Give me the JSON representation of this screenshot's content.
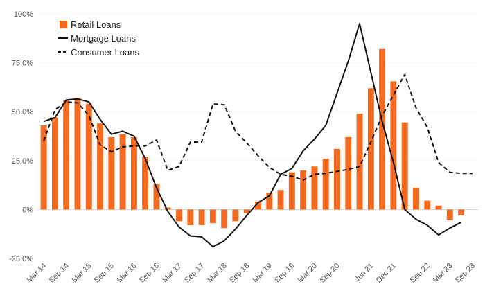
{
  "chart_data": {
    "type": "bar",
    "title": "",
    "xlabel": "",
    "ylabel": "",
    "ylim": [
      -25,
      100
    ],
    "yticks": [
      -25,
      0,
      25,
      50,
      75,
      100
    ],
    "ytick_labels": [
      "-25.0%",
      "0%",
      "25.0%",
      "50.0%",
      "75.0%",
      "100%"
    ],
    "grid": true,
    "legend_position": "top-left",
    "categories": [
      "Mar 14",
      "Jun 14",
      "Sep 14",
      "Dec 14",
      "Mar 15",
      "Jun 15",
      "Sep 15",
      "Dec 15",
      "Mar 16",
      "Jun 16",
      "Sep 16",
      "Dec 16",
      "Mar 17",
      "Jun 17",
      "Sep 17",
      "Dec 17",
      "Mar 18",
      "Jun 18",
      "Sep 18",
      "Dec 18",
      "Mar 19",
      "Jun 19",
      "Sep 19",
      "Dec 19",
      "Mar 20",
      "Jun 20",
      "Sep 20",
      "Dec 20",
      "Mar 21",
      "Jun 21",
      "Sep 21",
      "Dec 21",
      "Mar 22",
      "Jun 22",
      "Sep 22",
      "Dec 22",
      "Mar 23",
      "Jun 23",
      "Sep 23"
    ],
    "x_tick_labels": [
      "Mar 14",
      "Sep 14",
      "Mar 15",
      "Sep 15",
      "Mar 16",
      "Sep 16",
      "Mar 17",
      "Sep 17",
      "Mar 18",
      "Sep 18",
      "Mar 19",
      "Sep 19",
      "Mar 20",
      "Sep 20",
      "Jun 21",
      "Dec 21",
      "Sep 22",
      "Mar 23",
      "Sep 23"
    ],
    "series": [
      {
        "name": "Retail Loans",
        "kind": "bar",
        "color": "#f26b21",
        "values": [
          43,
          47,
          56,
          57,
          54,
          44,
          37,
          38.5,
          37,
          27,
          13,
          1,
          -6,
          -8,
          -8,
          -7,
          -9.5,
          -6,
          -2,
          4,
          8.5,
          10,
          19,
          20,
          22,
          26,
          31,
          37,
          49,
          62,
          82,
          65.5,
          44.5,
          11,
          4.5,
          2,
          -5.5,
          -3,
          null
        ]
      },
      {
        "name": "Mortgage Loans",
        "kind": "line",
        "color": "#111111",
        "values": [
          45,
          47,
          56,
          56.5,
          55,
          46,
          38.5,
          40,
          37.5,
          26,
          11,
          -1,
          -9,
          -13.5,
          -14,
          -19,
          -16,
          -10,
          -3,
          3.5,
          7,
          18,
          21,
          30,
          36,
          43,
          59.5,
          76,
          95,
          70,
          45,
          24,
          0,
          -5,
          -8,
          -13,
          -9.5,
          -6.5,
          null
        ]
      },
      {
        "name": "Consumer Loans",
        "kind": "line",
        "dash": "dashed",
        "color": "#111111",
        "values": [
          35,
          51,
          55,
          54.5,
          48,
          33,
          29.5,
          32,
          32.5,
          32.5,
          35.5,
          20,
          22,
          34.5,
          34.5,
          54,
          53.5,
          40,
          34,
          27.5,
          21.5,
          18,
          17,
          15,
          18,
          18.5,
          19.5,
          20.5,
          22,
          34.5,
          48,
          58.5,
          69,
          52,
          42,
          24,
          19,
          18.5,
          18.5
        ]
      }
    ]
  }
}
